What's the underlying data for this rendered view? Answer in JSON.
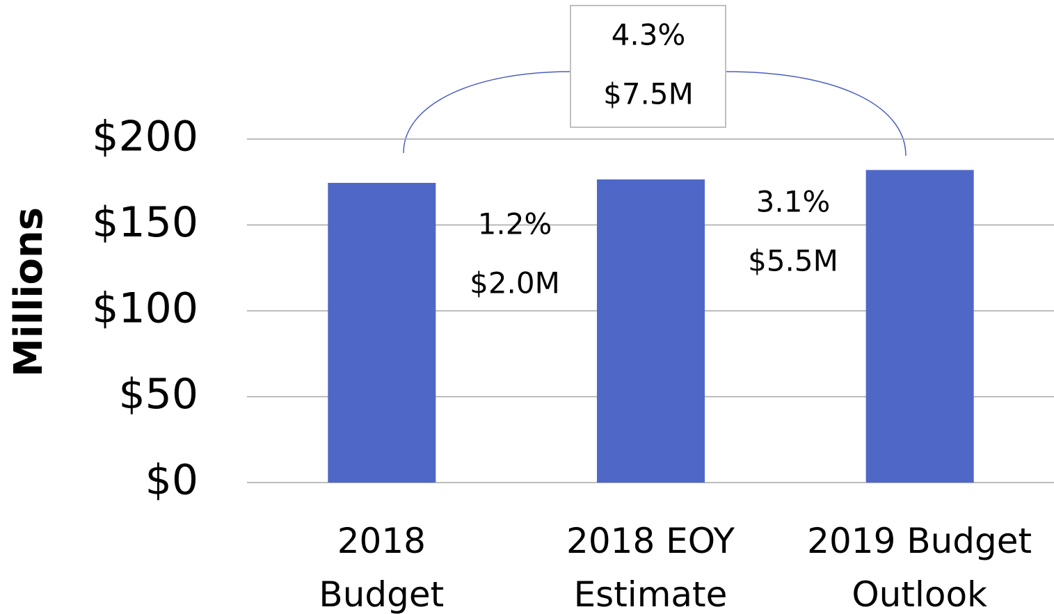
{
  "chart_data": {
    "type": "bar",
    "y_axis_label": "Millions",
    "categories": [
      "2018\nBudget",
      "2018 EOY\nEstimate",
      "2019 Budget\nOutlook"
    ],
    "values": [
      174.5,
      176.5,
      182
    ],
    "color": "#4f67c6",
    "ylim": [
      0,
      200
    ],
    "yticks": [
      {
        "value": 0,
        "label": "$0"
      },
      {
        "value": 50,
        "label": "$50"
      },
      {
        "value": 100,
        "label": "$100"
      },
      {
        "value": 150,
        "label": "$150"
      },
      {
        "value": 200,
        "label": "$200"
      }
    ],
    "grid": true,
    "annotations": [
      "1.2%",
      "$2.0M",
      "3.1%",
      "$5.5M",
      "4.3%",
      "$7.5M"
    ]
  }
}
